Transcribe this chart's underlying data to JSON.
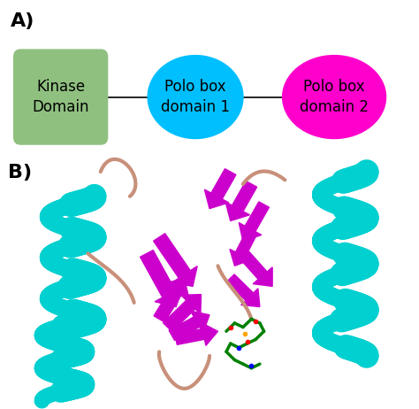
{
  "panel_a_label": "A)",
  "panel_b_label": "B)",
  "kinase_text": "Kinase\nDomain",
  "polo1_text": "Polo box\ndomain 1",
  "polo2_text": "Polo box\ndomain 2",
  "kinase_color": "#90c080",
  "polo1_color": "#00bfff",
  "polo2_color": "#ff00cc",
  "text_color": "#000000",
  "bg_color": "#ffffff",
  "line_color": "#000000",
  "label_fontsize": 16,
  "shape_fontsize": 12,
  "cyan": "#00d0d0",
  "magenta": "#cc00cc",
  "salmon": "#c8907a"
}
